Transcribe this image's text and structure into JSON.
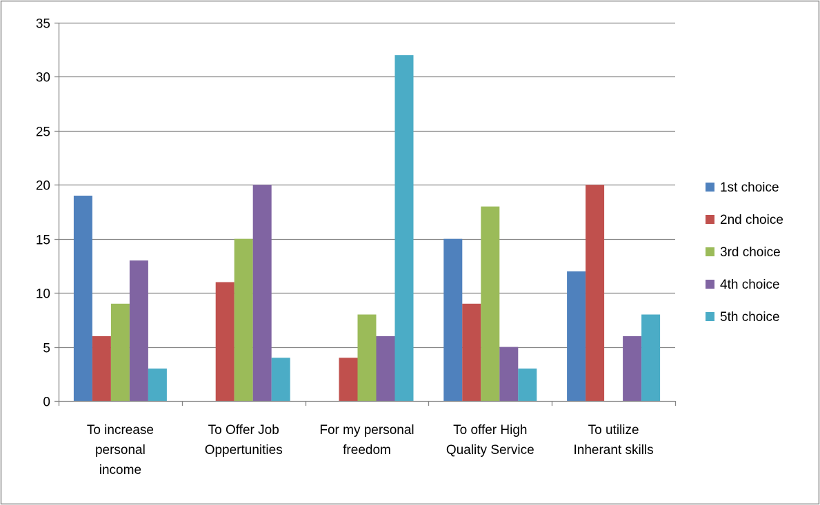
{
  "chart_data": {
    "type": "bar",
    "title": "",
    "xlabel": "",
    "ylabel": "",
    "ylim": [
      0,
      35
    ],
    "yticks": [
      0,
      5,
      10,
      15,
      20,
      25,
      30,
      35
    ],
    "grid": true,
    "legend_position": "right",
    "categories": [
      [
        "To increase",
        "personal",
        "income"
      ],
      [
        "To Offer Job",
        "Oppertunities"
      ],
      [
        "For my personal",
        "freedom"
      ],
      [
        "To offer High",
        "Quality Service"
      ],
      [
        "To utilize",
        "Inherant skills"
      ]
    ],
    "series": [
      {
        "name": "1st choice",
        "color": "#4F81BD",
        "values": [
          19,
          0,
          0,
          15,
          12
        ]
      },
      {
        "name": "2nd choice",
        "color": "#C0504D",
        "values": [
          6,
          11,
          4,
          9,
          20
        ]
      },
      {
        "name": "3rd choice",
        "color": "#9BBB59",
        "values": [
          9,
          15,
          8,
          18,
          0
        ]
      },
      {
        "name": "4th choice",
        "color": "#8064A2",
        "values": [
          13,
          20,
          6,
          5,
          6
        ]
      },
      {
        "name": "5th choice",
        "color": "#4BACC6",
        "values": [
          3,
          4,
          32,
          3,
          8
        ]
      }
    ]
  }
}
